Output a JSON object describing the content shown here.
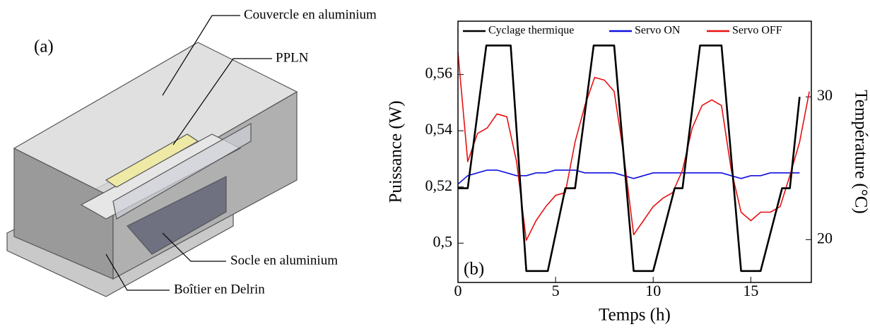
{
  "panel_a": {
    "label": "(a)",
    "callouts": [
      "Couvercle en aluminium",
      "PPLN",
      "Socle en aluminium",
      "Boîtier en Delrin"
    ]
  },
  "chart_data": {
    "type": "line",
    "panel_label": "(b)",
    "x_label": "Temps (h)",
    "y_label": "Puissance (W)",
    "y2_label": "Température (°C)",
    "xlim": [
      0,
      18.1
    ],
    "xticks": [
      0,
      5,
      10,
      15
    ],
    "ylim": [
      0.486,
      0.579
    ],
    "yticks": [
      {
        "value": 0.5,
        "label": "0,5"
      },
      {
        "value": 0.52,
        "label": "0,52"
      },
      {
        "value": 0.54,
        "label": "0,54"
      },
      {
        "value": 0.56,
        "label": "0,56"
      }
    ],
    "y2lim": [
      17.0,
      35.3
    ],
    "y2ticks": [
      20,
      30
    ],
    "series": [
      {
        "name": "Cyclage thermique",
        "color": "#000000",
        "axis": "y2",
        "x": [
          0,
          0.5,
          1.45,
          2.7,
          3.5,
          4.6,
          5.5,
          6.0,
          6.95,
          8.0,
          9.0,
          10.0,
          11.1,
          11.5,
          12.4,
          13.5,
          14.5,
          15.5,
          16.6,
          17.0,
          17.5
        ],
        "values": [
          23.6,
          23.6,
          33.6,
          33.6,
          17.8,
          17.8,
          23.6,
          23.6,
          33.6,
          33.6,
          17.8,
          17.8,
          23.6,
          23.6,
          33.6,
          33.6,
          17.8,
          17.8,
          23.6,
          23.6,
          30
        ]
      },
      {
        "name": "Servo ON",
        "color": "#1010e0",
        "x": [
          0,
          0.5,
          1,
          1.5,
          2,
          2.5,
          3,
          3.5,
          4,
          4.5,
          5,
          5.5,
          6,
          6.5,
          7,
          7.5,
          8,
          8.5,
          9,
          9.5,
          10,
          10.5,
          11,
          11.5,
          12,
          12.5,
          13,
          13.5,
          14,
          14.5,
          15,
          15.5,
          16,
          16.5,
          17,
          17.5
        ],
        "values": [
          0.521,
          0.524,
          0.525,
          0.526,
          0.526,
          0.525,
          0.524,
          0.524,
          0.525,
          0.525,
          0.526,
          0.526,
          0.526,
          0.525,
          0.525,
          0.525,
          0.525,
          0.524,
          0.523,
          0.524,
          0.525,
          0.525,
          0.525,
          0.525,
          0.525,
          0.525,
          0.525,
          0.525,
          0.524,
          0.523,
          0.524,
          0.524,
          0.525,
          0.525,
          0.525,
          0.525
        ]
      },
      {
        "name": "Servo OFF",
        "color": "#e81010",
        "x": [
          0,
          0.5,
          1,
          1.5,
          2,
          2.5,
          3,
          3.5,
          4,
          4.5,
          5,
          5.5,
          6,
          6.5,
          7,
          7.5,
          8,
          8.5,
          9,
          9.5,
          10,
          10.5,
          11,
          11.5,
          12,
          12.5,
          13,
          13.5,
          14,
          14.5,
          15,
          15.5,
          16,
          16.5,
          17,
          17.5,
          18
        ],
        "values": [
          0.568,
          0.529,
          0.539,
          0.541,
          0.546,
          0.545,
          0.529,
          0.501,
          0.508,
          0.513,
          0.517,
          0.518,
          0.536,
          0.549,
          0.559,
          0.558,
          0.554,
          0.531,
          0.503,
          0.508,
          0.513,
          0.516,
          0.518,
          0.526,
          0.541,
          0.549,
          0.551,
          0.549,
          0.526,
          0.511,
          0.508,
          0.511,
          0.511,
          0.513,
          0.524,
          0.536,
          0.554
        ]
      }
    ]
  }
}
